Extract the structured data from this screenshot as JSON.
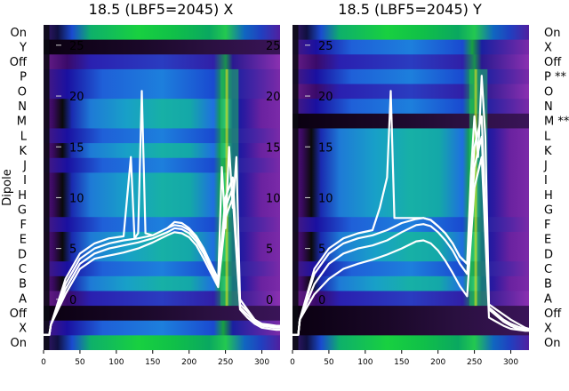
{
  "chart_data": [
    {
      "type": "heatmap",
      "title": "18.5 (LBF5=2045) X",
      "ylabel": "Dipole",
      "row_labels": [
        "On",
        "Y",
        "Off",
        "P",
        "O",
        "N",
        "M",
        "L",
        "K",
        "J",
        "I",
        "H",
        "G",
        "F",
        "E",
        "D",
        "C",
        "B",
        "A",
        "Off",
        "X",
        "On"
      ],
      "x_ticks": [
        0,
        50,
        100,
        150,
        200,
        250,
        300
      ],
      "xlim": [
        0,
        325
      ],
      "overlay_ylim": [
        -5,
        27
      ],
      "overlay_y_ticks": [
        0,
        5,
        10,
        15,
        20,
        25
      ],
      "y_tick_labels": [
        "0",
        "5",
        "10",
        "15",
        "20",
        "25"
      ],
      "right_y_tick_labels": [
        "0",
        "5",
        "10",
        "15",
        "20",
        "25"
      ],
      "line_color": "#ffffff",
      "series": [
        {
          "x": [
            0,
            8,
            10,
            30,
            50,
            70,
            90,
            110,
            120,
            125,
            130,
            135,
            140,
            150,
            170,
            180,
            190,
            200,
            210,
            220,
            230,
            240,
            245,
            250,
            255,
            260,
            265,
            270,
            280,
            290,
            300,
            310,
            320,
            325
          ],
          "y": [
            -3.5,
            -3.5,
            -2.5,
            2,
            4.5,
            5.5,
            6,
            6.2,
            14,
            6,
            6.5,
            20.5,
            6.5,
            6.3,
            7,
            7.6,
            7.5,
            7,
            6.2,
            5,
            3.5,
            2,
            13,
            7,
            15,
            9,
            14,
            0,
            -1,
            -2,
            -2.5,
            -2.6,
            -2.7,
            -2.7
          ]
        },
        {
          "x": [
            0,
            8,
            10,
            30,
            50,
            70,
            90,
            110,
            130,
            150,
            170,
            180,
            190,
            200,
            210,
            220,
            230,
            240,
            250,
            260,
            270,
            280,
            290,
            300,
            310,
            320,
            325
          ],
          "y": [
            -3.5,
            -3.5,
            -2.5,
            1.5,
            4,
            5,
            5.5,
            5.8,
            6,
            6.3,
            7,
            7.3,
            7.2,
            6.8,
            6,
            4.8,
            3.2,
            1.8,
            10,
            12,
            -0.5,
            -1.2,
            -2,
            -2.4,
            -2.5,
            -2.6,
            -2.6
          ]
        },
        {
          "x": [
            0,
            8,
            10,
            30,
            50,
            70,
            90,
            110,
            130,
            150,
            170,
            180,
            190,
            200,
            210,
            220,
            230,
            240,
            250,
            260,
            270,
            280,
            290,
            300,
            310,
            320,
            325
          ],
          "y": [
            -3.5,
            -3.5,
            -2.5,
            1,
            3.5,
            4.5,
            5,
            5.3,
            5.6,
            6,
            6.6,
            7,
            6.9,
            6.5,
            5.7,
            4.5,
            3,
            1.5,
            9,
            11,
            -0.8,
            -1.5,
            -2.2,
            -2.6,
            -2.7,
            -2.8,
            -2.8
          ]
        },
        {
          "x": [
            0,
            8,
            10,
            30,
            50,
            70,
            90,
            110,
            130,
            150,
            170,
            180,
            190,
            200,
            210,
            220,
            230,
            240,
            250,
            260,
            270,
            280,
            290,
            300,
            310,
            320,
            325
          ],
          "y": [
            -3.5,
            -3.5,
            -2.5,
            0.5,
            3,
            4,
            4.3,
            4.6,
            5,
            5.6,
            6.3,
            6.6,
            6.5,
            6.1,
            5.3,
            4,
            2.6,
            1.2,
            8,
            10,
            -1,
            -1.8,
            -2.4,
            -2.8,
            -2.9,
            -3,
            -3
          ]
        }
      ]
    },
    {
      "type": "heatmap",
      "title": "18.5 (LBF5=2045) Y",
      "ylabel": "",
      "row_labels": [
        "On",
        "X",
        "Off",
        "P **",
        "O",
        "N",
        "M **",
        "L",
        "K",
        "J",
        "I",
        "H",
        "G",
        "F",
        "E",
        "D",
        "C",
        "B",
        "A",
        "Off",
        "X",
        "On"
      ],
      "x_ticks": [
        0,
        50,
        100,
        150,
        200,
        250,
        300
      ],
      "xlim": [
        0,
        325
      ],
      "overlay_ylim": [
        -5,
        27
      ],
      "overlay_y_ticks": [
        0,
        5,
        10,
        15,
        20,
        25
      ],
      "y_tick_labels": [
        "0",
        "5",
        "10",
        "15",
        "20",
        "25"
      ],
      "right_y_tick_labels": [],
      "line_color": "#ffffff",
      "series": [
        {
          "x": [
            0,
            8,
            10,
            30,
            50,
            70,
            90,
            110,
            120,
            130,
            135,
            140,
            150,
            170,
            180,
            190,
            200,
            210,
            220,
            230,
            240,
            245,
            250,
            255,
            260,
            265,
            270,
            280,
            290,
            300,
            310,
            320,
            325
          ],
          "y": [
            -3.5,
            -3.5,
            -2,
            3,
            5,
            6,
            6.5,
            6.8,
            9,
            12,
            20.5,
            8,
            8,
            8,
            8,
            7.8,
            7.2,
            6.5,
            5.5,
            4.2,
            3.5,
            12,
            18,
            14,
            22,
            16,
            -0.5,
            -1,
            -1.5,
            -2,
            -2.4,
            -2.8,
            -2.9
          ]
        },
        {
          "x": [
            0,
            8,
            10,
            30,
            50,
            70,
            90,
            110,
            130,
            150,
            170,
            180,
            190,
            200,
            210,
            220,
            230,
            240,
            250,
            260,
            270,
            280,
            290,
            300,
            310,
            320,
            325
          ],
          "y": [
            -3.5,
            -3.5,
            -2,
            2.5,
            4.5,
            5.5,
            6,
            6.3,
            6.8,
            7.5,
            7.9,
            8,
            7.8,
            7.2,
            6.5,
            5.5,
            4.2,
            3.5,
            15,
            18,
            -0.8,
            -1.4,
            -2,
            -2.4,
            -2.7,
            -2.9,
            -3
          ]
        },
        {
          "x": [
            0,
            8,
            10,
            30,
            50,
            70,
            90,
            110,
            130,
            150,
            170,
            180,
            190,
            200,
            210,
            220,
            230,
            240,
            250,
            260,
            270,
            280,
            290,
            300,
            310,
            320,
            325
          ],
          "y": [
            -3.5,
            -3.5,
            -2,
            1.5,
            3.5,
            4.5,
            5,
            5.3,
            5.8,
            6.6,
            7.3,
            7.4,
            7.2,
            6.6,
            5.8,
            4.8,
            3.5,
            2.5,
            13,
            16,
            -1,
            -1.6,
            -2.2,
            -2.6,
            -2.9,
            -3,
            -3
          ]
        },
        {
          "x": [
            0,
            8,
            10,
            30,
            50,
            70,
            90,
            110,
            130,
            150,
            170,
            180,
            190,
            200,
            210,
            220,
            230,
            240,
            250,
            260,
            270,
            280,
            290,
            300,
            310,
            320,
            325
          ],
          "y": [
            -3.5,
            -3.5,
            -2,
            0.5,
            2,
            3,
            3.5,
            3.9,
            4.4,
            5,
            5.7,
            5.8,
            5.5,
            4.8,
            3.8,
            2.6,
            1.3,
            0.3,
            11,
            14,
            -1.8,
            -2.2,
            -2.6,
            -2.9,
            -3,
            -3.1,
            -3.1
          ]
        }
      ]
    }
  ]
}
